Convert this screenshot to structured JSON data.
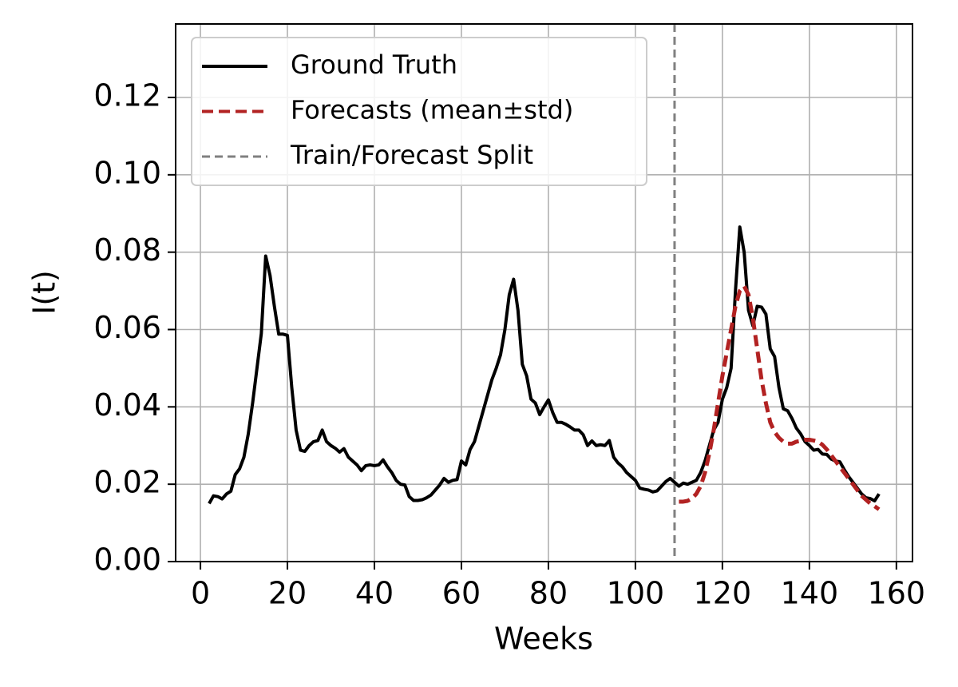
{
  "chart_data": {
    "type": "line",
    "xlabel": "Weeks",
    "ylabel": "I(t)",
    "xlim": [
      -5.7,
      163.7
    ],
    "ylim": [
      0,
      0.139
    ],
    "xticks": [
      0,
      20,
      40,
      60,
      80,
      100,
      120,
      140,
      160
    ],
    "yticks": [
      {
        "value": 0,
        "label": "0.00"
      },
      0.02,
      0.04,
      0.06,
      0.08,
      {
        "value": 0.1,
        "label": "0.10"
      },
      0.12
    ],
    "grid": true,
    "legend": "upper left",
    "split": {
      "name": "Train/Forecast Split",
      "x": 109,
      "color": "#808080"
    },
    "series": [
      {
        "name": "Ground Truth",
        "color": "#000000",
        "style": "solid",
        "x": [
          2,
          3,
          4,
          5,
          6,
          7,
          8,
          9,
          10,
          11,
          12,
          13,
          14,
          15,
          16,
          17,
          18,
          19,
          20,
          21,
          22,
          23,
          24,
          25,
          26,
          27,
          28,
          29,
          30,
          31,
          32,
          33,
          34,
          35,
          36,
          37,
          38,
          39,
          40,
          41,
          42,
          43,
          44,
          45,
          46,
          47,
          48,
          49,
          50,
          51,
          52,
          53,
          54,
          55,
          56,
          57,
          58,
          59,
          60,
          61,
          62,
          63,
          64,
          65,
          66,
          67,
          68,
          69,
          70,
          71,
          72,
          73,
          74,
          75,
          76,
          77,
          78,
          79,
          80,
          81,
          82,
          83,
          84,
          85,
          86,
          87,
          88,
          89,
          90,
          91,
          92,
          93,
          94,
          95,
          96,
          97,
          98,
          99,
          100,
          101,
          102,
          103,
          104,
          105,
          106,
          107,
          108,
          109,
          110,
          111,
          112,
          113,
          114,
          115,
          116,
          117,
          118,
          119,
          120,
          121,
          122,
          123,
          124,
          125,
          126,
          127,
          128,
          129,
          130,
          131,
          132,
          133,
          134,
          135,
          136,
          137,
          138,
          139,
          140,
          141,
          142,
          143,
          144,
          145,
          146,
          147,
          148,
          149,
          150,
          151,
          152,
          153,
          154,
          155,
          156
        ],
        "values": [
          0.015,
          0.017,
          0.0168,
          0.0162,
          0.0175,
          0.0182,
          0.0225,
          0.024,
          0.027,
          0.033,
          0.041,
          0.05,
          0.059,
          0.079,
          0.074,
          0.066,
          0.0588,
          0.0588,
          0.0585,
          0.045,
          0.034,
          0.0288,
          0.0285,
          0.03,
          0.031,
          0.0313,
          0.034,
          0.031,
          0.03,
          0.0293,
          0.0283,
          0.0292,
          0.027,
          0.026,
          0.025,
          0.0235,
          0.0248,
          0.025,
          0.0248,
          0.025,
          0.0263,
          0.0245,
          0.023,
          0.021,
          0.02,
          0.0198,
          0.0168,
          0.0158,
          0.0158,
          0.016,
          0.0165,
          0.0172,
          0.0185,
          0.0198,
          0.0215,
          0.0205,
          0.021,
          0.0212,
          0.026,
          0.025,
          0.029,
          0.031,
          0.035,
          0.039,
          0.043,
          0.047,
          0.05,
          0.0535,
          0.06,
          0.069,
          0.073,
          0.065,
          0.051,
          0.048,
          0.042,
          0.041,
          0.038,
          0.04,
          0.0418,
          0.0385,
          0.036,
          0.036,
          0.0355,
          0.0348,
          0.034,
          0.034,
          0.0328,
          0.03,
          0.0312,
          0.03,
          0.0302,
          0.03,
          0.0313,
          0.027,
          0.0255,
          0.0245,
          0.023,
          0.022,
          0.021,
          0.019,
          0.0187,
          0.0185,
          0.018,
          0.0183,
          0.0195,
          0.0207,
          0.0215,
          0.0205,
          0.0195,
          0.0203,
          0.02,
          0.0205,
          0.021,
          0.023,
          0.026,
          0.03,
          0.034,
          0.036,
          0.042,
          0.045,
          0.05,
          0.07,
          0.0865,
          0.08,
          0.065,
          0.061,
          0.066,
          0.0658,
          0.064,
          0.055,
          0.053,
          0.045,
          0.0395,
          0.039,
          0.037,
          0.0345,
          0.033,
          0.031,
          0.03,
          0.0288,
          0.029,
          0.0278,
          0.0277,
          0.0265,
          0.026,
          0.0258,
          0.0238,
          0.022,
          0.0205,
          0.019,
          0.0175,
          0.0165,
          0.0163,
          0.0157,
          0.0175
        ]
      },
      {
        "name": "Forecasts (mean±std)",
        "color": "#b22222",
        "style": "dashed",
        "x": [
          110,
          111,
          112,
          113,
          114,
          115,
          116,
          117,
          118,
          119,
          120,
          121,
          122,
          123,
          124,
          125,
          126,
          127,
          128,
          129,
          130,
          131,
          132,
          133,
          134,
          135,
          136,
          137,
          138,
          139,
          140,
          141,
          142,
          143,
          144,
          145,
          146,
          147,
          148,
          149,
          150,
          151,
          152,
          153,
          154,
          155,
          156
        ],
        "values": [
          0.0155,
          0.0155,
          0.0157,
          0.0163,
          0.0175,
          0.0195,
          0.023,
          0.028,
          0.034,
          0.041,
          0.048,
          0.054,
          0.06,
          0.066,
          0.07,
          0.0712,
          0.069,
          0.063,
          0.055,
          0.047,
          0.041,
          0.036,
          0.0335,
          0.032,
          0.031,
          0.0305,
          0.0305,
          0.031,
          0.0312,
          0.0315,
          0.0315,
          0.0313,
          0.031,
          0.0302,
          0.029,
          0.0275,
          0.026,
          0.0245,
          0.023,
          0.0215,
          0.02,
          0.0185,
          0.017,
          0.016,
          0.015,
          0.0143,
          0.0135
        ]
      }
    ]
  }
}
